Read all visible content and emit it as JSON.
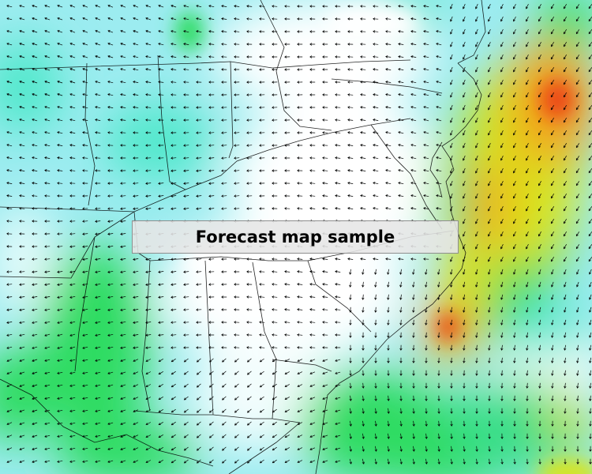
{
  "map": {
    "caption": "Forecast map sample",
    "field_type": "wind-vectors",
    "palette": {
      "calm": "#ffffff",
      "light": "#9cecf0",
      "moderate_low": "#52e8cc",
      "moderate": "#2edc62",
      "strong": "#d8e41e",
      "very_strong": "#f2a21a",
      "extreme": "#ec4818",
      "arrow_color": "#000000",
      "border_color": "#000000"
    }
  }
}
